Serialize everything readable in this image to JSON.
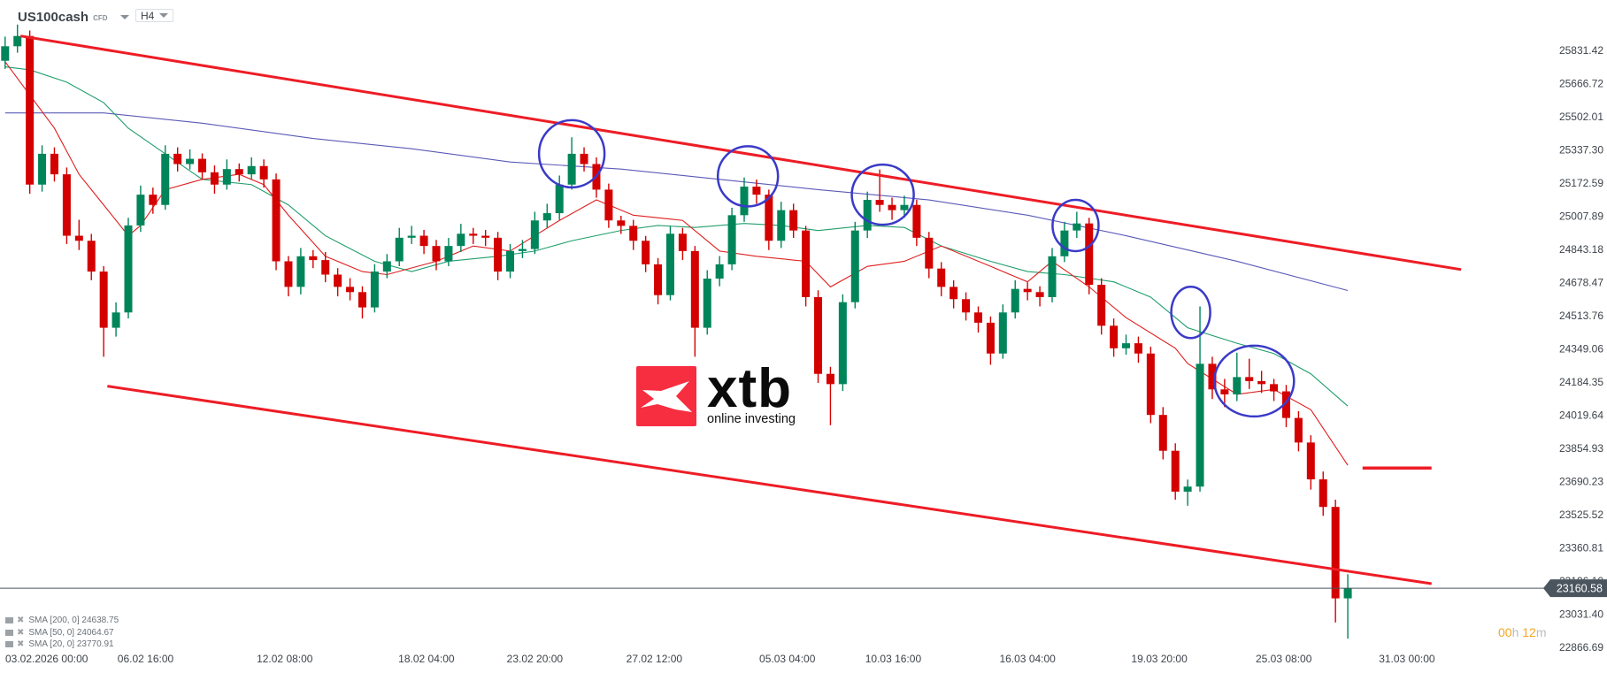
{
  "header": {
    "symbol": "US100cash",
    "instrument_type": "CFD",
    "timeframe": "H4"
  },
  "logo": {
    "text": "xtb",
    "tagline": "online investing",
    "color": "#f72d40"
  },
  "legend": [
    {
      "label": "SMA [200, 0] 24638.75"
    },
    {
      "label": "SMA [50, 0] 24064.67"
    },
    {
      "label": "SMA [20, 0] 23770.91"
    }
  ],
  "timer": {
    "hours": "00",
    "h": "h",
    "minutes": "12",
    "m": "m"
  },
  "colors": {
    "bull": "#00855a",
    "bear": "#d40000",
    "channel": "#ee1c25",
    "annotation": "#3a3ac8",
    "sma200": "#5a5ab8",
    "sma50": "#1f9e6b",
    "sma20": "#e01e1e",
    "price_line": "#4a555e"
  },
  "chart_data": {
    "type": "candlestick",
    "symbol": "US100cash",
    "timeframe": "H4",
    "ylim": [
      22866.69,
      25831.42
    ],
    "y_ticks": [
      "25831.42",
      "25666.72",
      "25502.01",
      "25337.30",
      "25172.59",
      "25007.89",
      "24843.18",
      "24678.47",
      "24513.76",
      "24349.06",
      "24184.35",
      "24019.64",
      "23854.93",
      "23690.23",
      "23525.52",
      "23360.81",
      "23196.10",
      "23031.40",
      "22866.69"
    ],
    "x_ticks": [
      "03.02.2026 00:00",
      "06.02 16:00",
      "12.02 08:00",
      "18.02 04:00",
      "23.02 20:00",
      "27.02 12:00",
      "05.03 04:00",
      "10.03 16:00",
      "16.03 04:00",
      "19.03 20:00",
      "25.03 08:00",
      "31.03 00:00"
    ],
    "current_price": "23160.58",
    "candles_ohlc": [
      [
        25780,
        25900,
        25740,
        25852
      ],
      [
        25852,
        25960,
        25820,
        25903
      ],
      [
        25903,
        25930,
        25120,
        25165
      ],
      [
        25165,
        25360,
        25130,
        25318
      ],
      [
        25318,
        25350,
        25180,
        25216
      ],
      [
        25216,
        25250,
        24870,
        24911
      ],
      [
        24911,
        24990,
        24840,
        24886
      ],
      [
        24886,
        24920,
        24690,
        24733
      ],
      [
        24733,
        24760,
        24310,
        24454
      ],
      [
        24454,
        24580,
        24410,
        24530
      ],
      [
        24530,
        25000,
        24500,
        24962
      ],
      [
        24962,
        25160,
        24930,
        25115
      ],
      [
        25115,
        25150,
        25020,
        25064
      ],
      [
        25064,
        25360,
        25040,
        25318
      ],
      [
        25318,
        25350,
        25230,
        25267
      ],
      [
        25267,
        25340,
        25240,
        25293
      ],
      [
        25293,
        25320,
        25190,
        25226
      ],
      [
        25226,
        25260,
        25120,
        25165
      ],
      [
        25165,
        25290,
        25140,
        25242
      ],
      [
        25242,
        25270,
        25180,
        25216
      ],
      [
        25216,
        25300,
        25190,
        25257
      ],
      [
        25257,
        25290,
        25150,
        25191
      ],
      [
        25191,
        25220,
        24740,
        24784
      ],
      [
        24784,
        24810,
        24610,
        24657
      ],
      [
        24657,
        24850,
        24620,
        24809
      ],
      [
        24809,
        24840,
        24750,
        24790
      ],
      [
        24790,
        24830,
        24680,
        24718
      ],
      [
        24718,
        24750,
        24610,
        24657
      ],
      [
        24657,
        24700,
        24590,
        24631
      ],
      [
        24631,
        24660,
        24500,
        24555
      ],
      [
        24555,
        24770,
        24530,
        24733
      ],
      [
        24733,
        24820,
        24700,
        24784
      ],
      [
        24784,
        24950,
        24760,
        24901
      ],
      [
        24901,
        24960,
        24870,
        24911
      ],
      [
        24911,
        24940,
        24820,
        24860
      ],
      [
        24860,
        24890,
        24740,
        24784
      ],
      [
        24784,
        24900,
        24760,
        24860
      ],
      [
        24860,
        24970,
        24830,
        24921
      ],
      [
        24921,
        24950,
        24870,
        24911
      ],
      [
        24911,
        24940,
        24860,
        24901
      ],
      [
        24901,
        24930,
        24690,
        24733
      ],
      [
        24733,
        24870,
        24700,
        24835
      ],
      [
        24835,
        24890,
        24800,
        24845
      ],
      [
        24845,
        25030,
        24820,
        24987
      ],
      [
        24987,
        25070,
        24950,
        25023
      ],
      [
        25023,
        25210,
        24990,
        25165
      ],
      [
        25165,
        25400,
        25140,
        25318
      ],
      [
        25318,
        25350,
        25230,
        25267
      ],
      [
        25267,
        25300,
        25100,
        25140
      ],
      [
        25140,
        25170,
        24950,
        24987
      ],
      [
        24987,
        25010,
        24920,
        24960
      ],
      [
        24960,
        24990,
        24840,
        24886
      ],
      [
        24886,
        24910,
        24730,
        24769
      ],
      [
        24769,
        24800,
        24570,
        24616
      ],
      [
        24616,
        24960,
        24590,
        24921
      ],
      [
        24921,
        24950,
        24790,
        24835
      ],
      [
        24835,
        24860,
        24310,
        24454
      ],
      [
        24454,
        24740,
        24420,
        24698
      ],
      [
        24698,
        24810,
        24660,
        24769
      ],
      [
        24769,
        25050,
        24740,
        25013
      ],
      [
        25013,
        25200,
        24980,
        25155
      ],
      [
        25155,
        25190,
        25070,
        25115
      ],
      [
        25115,
        25140,
        24840,
        24886
      ],
      [
        24886,
        25080,
        24850,
        25038
      ],
      [
        25038,
        25070,
        24900,
        24937
      ],
      [
        24937,
        24960,
        24560,
        24606
      ],
      [
        24606,
        24640,
        24180,
        24225
      ],
      [
        24225,
        24260,
        23970,
        24174
      ],
      [
        24174,
        24620,
        24140,
        24581
      ],
      [
        24581,
        24980,
        24550,
        24937
      ],
      [
        24937,
        25130,
        24900,
        25089
      ],
      [
        25089,
        25240,
        25030,
        25064
      ],
      [
        25064,
        25100,
        24990,
        25038
      ],
      [
        25038,
        25110,
        25000,
        25064
      ],
      [
        25064,
        25090,
        24860,
        24901
      ],
      [
        24901,
        24930,
        24700,
        24748
      ],
      [
        24748,
        24780,
        24610,
        24657
      ],
      [
        24657,
        24690,
        24550,
        24596
      ],
      [
        24596,
        24630,
        24490,
        24530
      ],
      [
        24530,
        24560,
        24430,
        24479
      ],
      [
        24479,
        24510,
        24270,
        24326
      ],
      [
        24326,
        24570,
        24300,
        24530
      ],
      [
        24530,
        24690,
        24500,
        24647
      ],
      [
        24647,
        24680,
        24590,
        24631
      ],
      [
        24631,
        24660,
        24560,
        24606
      ],
      [
        24606,
        24850,
        24580,
        24809
      ],
      [
        24809,
        24980,
        24780,
        24937
      ],
      [
        24937,
        25030,
        24900,
        24972
      ],
      [
        24972,
        25000,
        24620,
        24667
      ],
      [
        24667,
        24700,
        24420,
        24464
      ],
      [
        24464,
        24500,
        24310,
        24352
      ],
      [
        24352,
        24420,
        24320,
        24377
      ],
      [
        24377,
        24410,
        24280,
        24326
      ],
      [
        24326,
        24360,
        23980,
        24021
      ],
      [
        24021,
        24060,
        23800,
        23843
      ],
      [
        23843,
        23880,
        23600,
        23640
      ],
      [
        23640,
        23700,
        23570,
        23665
      ],
      [
        23665,
        24560,
        23640,
        24275
      ],
      [
        24275,
        24310,
        24100,
        24148
      ],
      [
        24148,
        24200,
        24060,
        24123
      ],
      [
        24123,
        24330,
        24090,
        24209
      ],
      [
        24209,
        24300,
        24150,
        24189
      ],
      [
        24189,
        24240,
        24130,
        24174
      ],
      [
        24174,
        24200,
        24090,
        24138
      ],
      [
        24138,
        24170,
        23960,
        24006
      ],
      [
        24006,
        24040,
        23840,
        23884
      ],
      [
        23884,
        23920,
        23650,
        23701
      ],
      [
        23701,
        23740,
        23520,
        23564
      ],
      [
        23564,
        23600,
        22990,
        23110
      ],
      [
        23110,
        23230,
        22910,
        23160.58
      ]
    ],
    "indicators": [
      {
        "name": "SMA [200, 0]",
        "last": "24638.75",
        "color": "#5a5ab8",
        "points": [
          [
            0,
            25521
          ],
          [
            8,
            25521
          ],
          [
            16,
            25470
          ],
          [
            25,
            25394
          ],
          [
            33,
            25343
          ],
          [
            41,
            25277
          ],
          [
            50,
            25242
          ],
          [
            58,
            25191
          ],
          [
            66,
            25140
          ],
          [
            75,
            25089
          ],
          [
            83,
            25013
          ],
          [
            91,
            24911
          ],
          [
            100,
            24784
          ],
          [
            109,
            24639
          ]
        ]
      },
      {
        "name": "SMA [50, 0]",
        "last": "24064.67",
        "color": "#1f9e6b",
        "points": [
          [
            0,
            25750
          ],
          [
            2,
            25735
          ],
          [
            5,
            25674
          ],
          [
            8,
            25572
          ],
          [
            10,
            25445
          ],
          [
            13,
            25318
          ],
          [
            16,
            25191
          ],
          [
            20,
            25165
          ],
          [
            23,
            25064
          ],
          [
            26,
            24911
          ],
          [
            30,
            24784
          ],
          [
            33,
            24733
          ],
          [
            36,
            24784
          ],
          [
            40,
            24809
          ],
          [
            43,
            24835
          ],
          [
            46,
            24886
          ],
          [
            50,
            24937
          ],
          [
            53,
            24962
          ],
          [
            56,
            24952
          ],
          [
            60,
            24972
          ],
          [
            63,
            24962
          ],
          [
            66,
            24937
          ],
          [
            70,
            24962
          ],
          [
            73,
            24952
          ],
          [
            76,
            24860
          ],
          [
            80,
            24784
          ],
          [
            83,
            24733
          ],
          [
            86,
            24718
          ],
          [
            90,
            24682
          ],
          [
            93,
            24606
          ],
          [
            96,
            24454
          ],
          [
            100,
            24377
          ],
          [
            103,
            24326
          ],
          [
            106,
            24225
          ],
          [
            109,
            24065
          ]
        ]
      },
      {
        "name": "SMA [20, 0]",
        "last": "23770.91",
        "color": "#e01e1e",
        "points": [
          [
            0,
            25775
          ],
          [
            4,
            25445
          ],
          [
            6,
            25216
          ],
          [
            8,
            25064
          ],
          [
            10,
            24911
          ],
          [
            11,
            24962
          ],
          [
            13,
            25140
          ],
          [
            16,
            25191
          ],
          [
            19,
            25216
          ],
          [
            21,
            25165
          ],
          [
            23,
            25013
          ],
          [
            26,
            24809
          ],
          [
            29,
            24733
          ],
          [
            31,
            24718
          ],
          [
            35,
            24784
          ],
          [
            38,
            24860
          ],
          [
            41,
            24835
          ],
          [
            45,
            24987
          ],
          [
            48,
            25089
          ],
          [
            51,
            25013
          ],
          [
            55,
            24987
          ],
          [
            58,
            24835
          ],
          [
            61,
            24809
          ],
          [
            65,
            24784
          ],
          [
            67,
            24657
          ],
          [
            70,
            24759
          ],
          [
            73,
            24784
          ],
          [
            76,
            24860
          ],
          [
            80,
            24759
          ],
          [
            83,
            24682
          ],
          [
            85,
            24784
          ],
          [
            88,
            24657
          ],
          [
            91,
            24504
          ],
          [
            95,
            24352
          ],
          [
            96,
            24276
          ],
          [
            100,
            24123
          ],
          [
            103,
            24148
          ],
          [
            106,
            24047
          ],
          [
            109,
            23771
          ]
        ]
      }
    ],
    "drawings": {
      "channel_upper": [
        [
          1.25,
          25903
        ],
        [
          118.2,
          24743
        ]
      ],
      "channel_lower": [
        [
          8.3,
          24164
        ],
        [
          115.8,
          23183
        ]
      ],
      "horizontal_level": [
        [
          110.2,
          23757
        ],
        [
          115.8,
          23757
        ]
      ],
      "circles": [
        [
          46,
          25318
        ],
        [
          60.3,
          25206
        ],
        [
          71.25,
          25115
        ],
        [
          86.9,
          24962
        ],
        [
          96.25,
          24530
        ],
        [
          101.4,
          24189
        ]
      ]
    }
  }
}
